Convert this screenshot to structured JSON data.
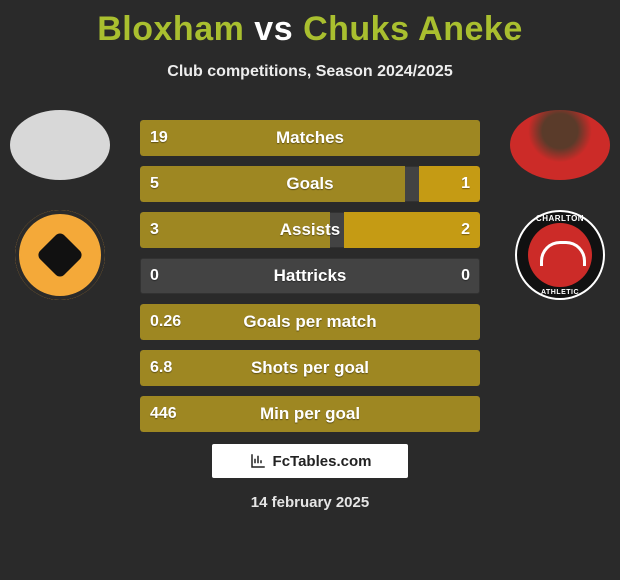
{
  "title_accent_color": "#a9bf2f",
  "background_color": "#2a2a2a",
  "header": {
    "player_left": "Bloxham",
    "vs": "vs",
    "player_right": "Chuks Aneke",
    "subtitle": "Club competitions, Season 2024/2025"
  },
  "crests": {
    "left_name": "Blackpool Football Club",
    "right_name_top": "CHARLTON",
    "right_name_bottom": "ATHLETIC"
  },
  "bars": {
    "left_fill_color": "#9e8722",
    "right_fill_color": "#c59b14",
    "track_color": "rgba(255,255,255,0.12)",
    "label_fontsize": 17,
    "value_fontsize": 16,
    "rows": [
      {
        "label": "Matches",
        "left": "19",
        "right": "",
        "left_pct": 100,
        "right_pct": 0
      },
      {
        "label": "Goals",
        "left": "5",
        "right": "1",
        "left_pct": 78,
        "right_pct": 18
      },
      {
        "label": "Assists",
        "left": "3",
        "right": "2",
        "left_pct": 56,
        "right_pct": 40
      },
      {
        "label": "Hattricks",
        "left": "0",
        "right": "0",
        "left_pct": 0,
        "right_pct": 0
      },
      {
        "label": "Goals per match",
        "left": "0.26",
        "right": "",
        "left_pct": 100,
        "right_pct": 0
      },
      {
        "label": "Shots per goal",
        "left": "6.8",
        "right": "",
        "left_pct": 100,
        "right_pct": 0
      },
      {
        "label": "Min per goal",
        "left": "446",
        "right": "",
        "left_pct": 100,
        "right_pct": 0
      }
    ]
  },
  "footer": {
    "logo_text": "FcTables.com",
    "date": "14 february 2025"
  }
}
